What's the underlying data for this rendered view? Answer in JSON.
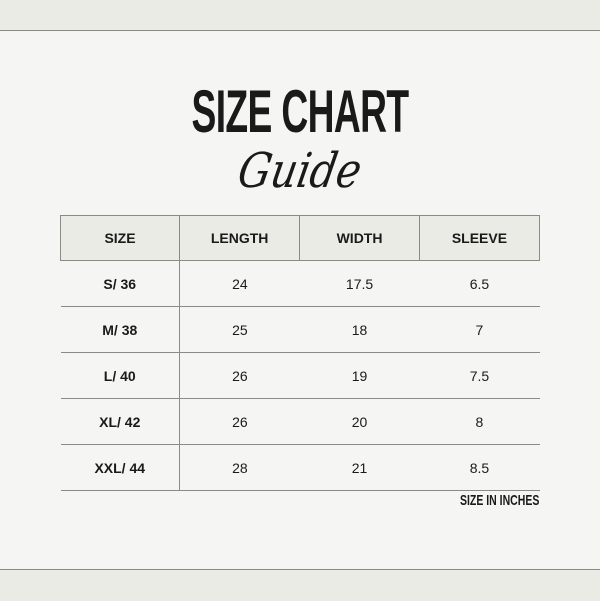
{
  "title": "SIZE CHART",
  "subtitle": "Guide",
  "table": {
    "headers": [
      "SIZE",
      "LENGTH",
      "WIDTH",
      "SLEEVE"
    ],
    "rows": [
      [
        "S/ 36",
        "24",
        "17.5",
        "6.5"
      ],
      [
        "M/ 38",
        "25",
        "18",
        "7"
      ],
      [
        "L/ 40",
        "26",
        "19",
        "7.5"
      ],
      [
        "XL/ 42",
        "26",
        "20",
        "8"
      ],
      [
        "XXL/ 44",
        "28",
        "21",
        "8.5"
      ]
    ]
  },
  "note": "SIZE IN INCHES",
  "colors": {
    "background": "#f5f5f3",
    "band": "#ebebe6",
    "text": "#1a1a1a",
    "border": "#8a8a86"
  }
}
